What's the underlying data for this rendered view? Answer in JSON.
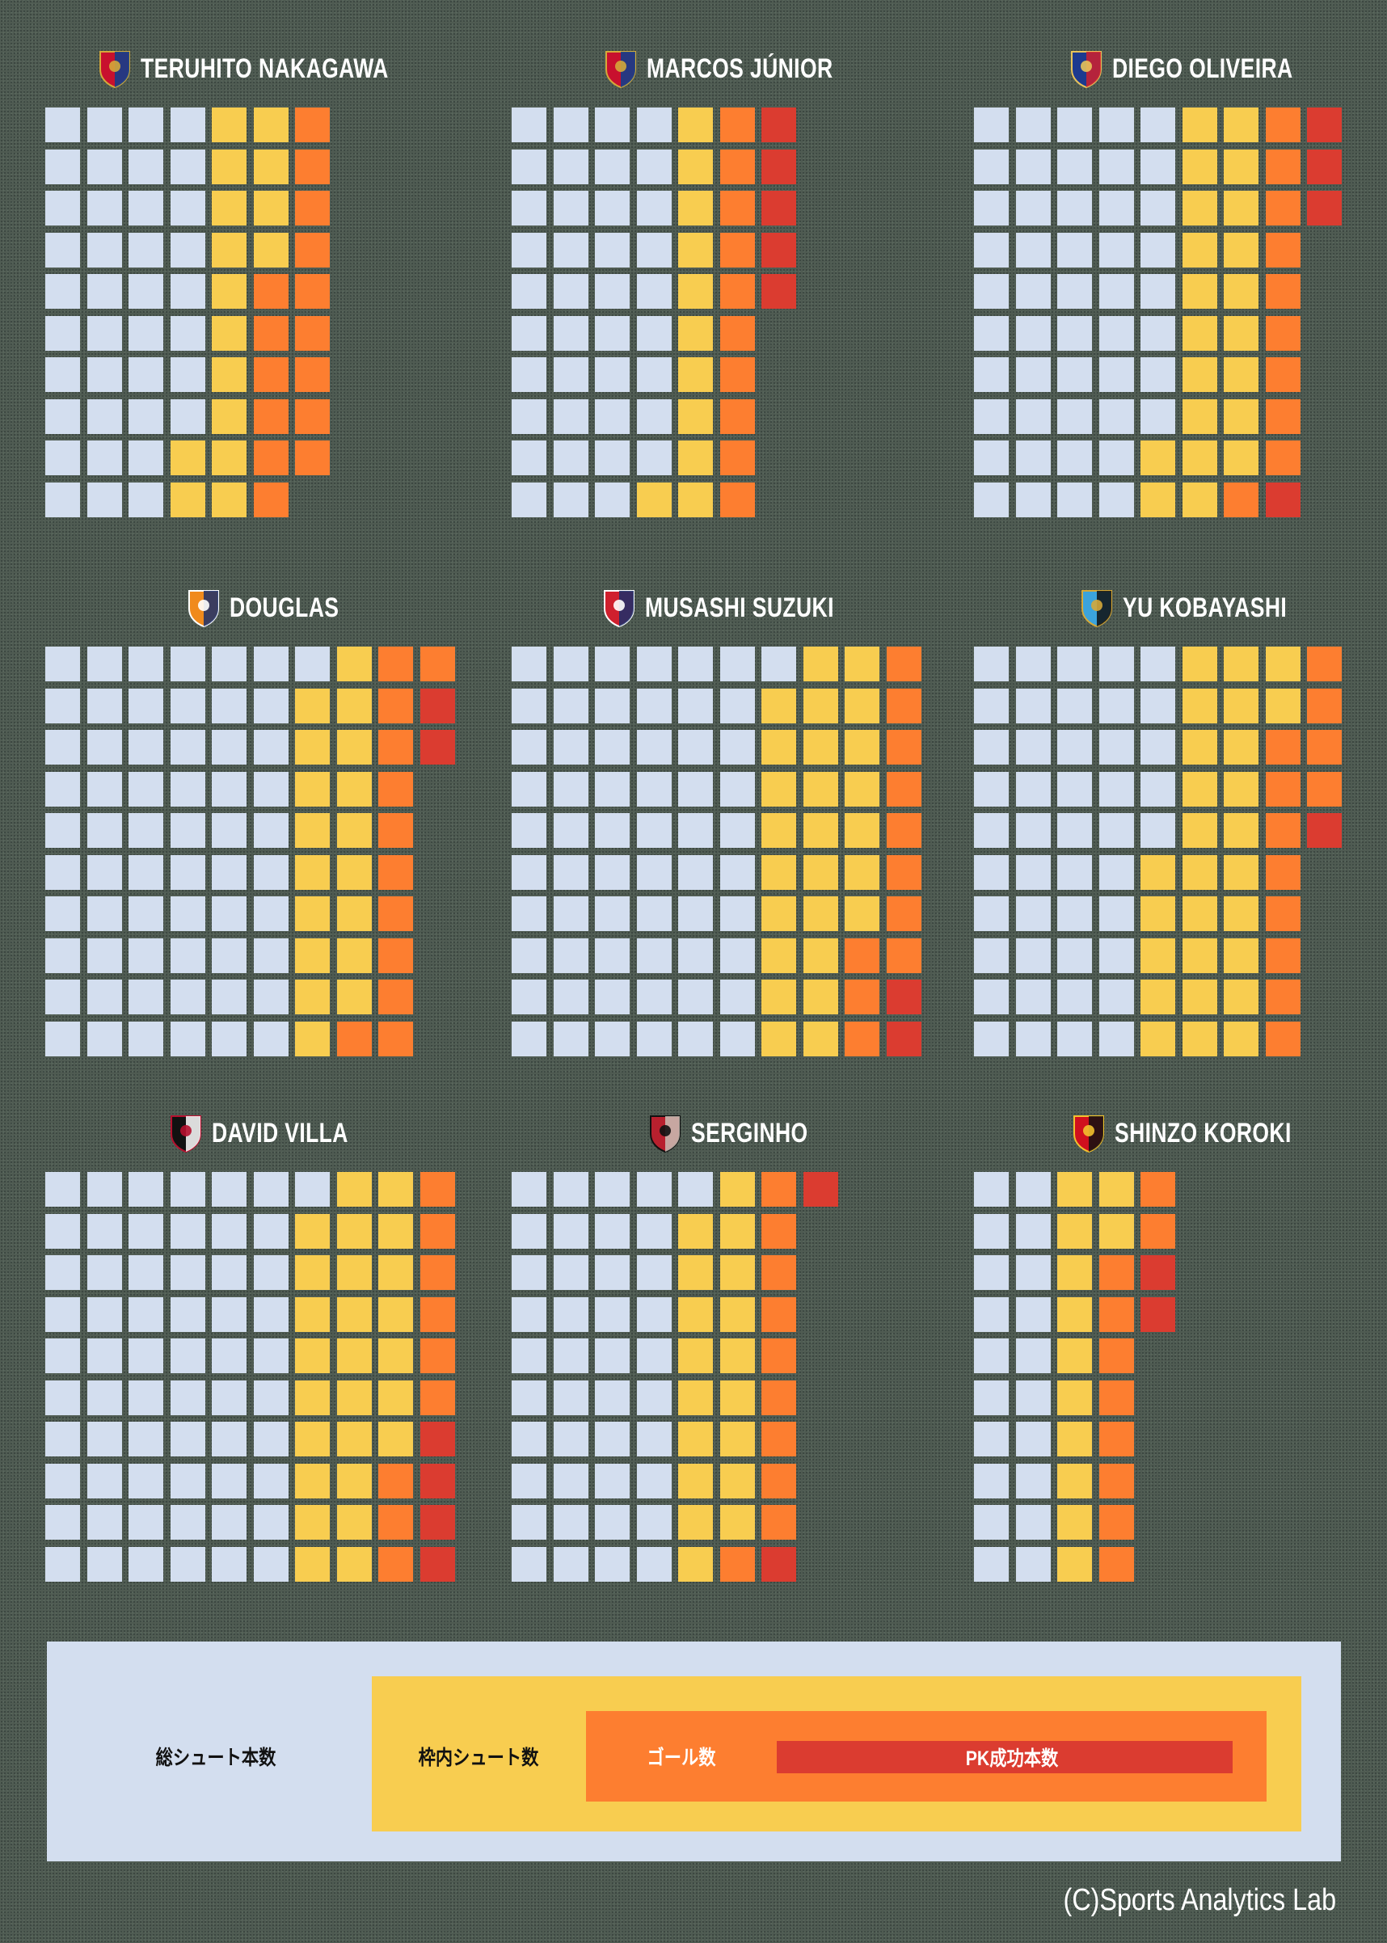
{
  "chart_data": {
    "type": "waffle",
    "rows_per_column": 10,
    "category_order": [
      "other_shots",
      "on_target_non_goal",
      "goals_non_pk",
      "pk_goals"
    ],
    "colors": {
      "other_shots": "#d3deef",
      "on_target_non_goal": "#f8cd50",
      "goals_non_pk": "#fd7e30",
      "pk_goals": "#db3c30"
    },
    "players": [
      {
        "name": "TERUHITO NAKAGAWA",
        "logo": "yokohama-f-marinos-crest-icon",
        "logo_colors": [
          "#c8102e",
          "#0a3f8f",
          "#d4a93a"
        ],
        "counts": [
          38,
          16,
          15,
          0
        ]
      },
      {
        "name": "MARCOS JÚNIOR",
        "logo": "yokohama-f-marinos-crest-icon",
        "logo_colors": [
          "#c8102e",
          "#0a3f8f",
          "#d4a93a"
        ],
        "counts": [
          39,
          11,
          10,
          5
        ]
      },
      {
        "name": "DIEGO OLIVEIRA",
        "logo": "fc-tokyo-crest-icon",
        "logo_colors": [
          "#1d3a8f",
          "#d0202e",
          "#e8c35a"
        ],
        "counts": [
          48,
          21,
          10,
          4
        ]
      },
      {
        "name": "DOUGLAS",
        "logo": "shimizu-s-pulse-crest-icon",
        "logo_colors": [
          "#f08a1c",
          "#1b2f6b",
          "#ffffff"
        ],
        "counts": [
          61,
          18,
          12,
          2
        ]
      },
      {
        "name": "MUSASHI SUZUKI",
        "logo": "consadole-sapporo-crest-icon",
        "logo_colors": [
          "#d0202e",
          "#1b2f6b",
          "#ffffff"
        ],
        "counts": [
          61,
          26,
          11,
          2
        ]
      },
      {
        "name": "YU KOBAYASHI",
        "logo": "kawasaki-frontale-crest-icon",
        "logo_colors": [
          "#3ba3dc",
          "#111111",
          "#d4a93a"
        ],
        "counts": [
          45,
          27,
          12,
          1
        ]
      },
      {
        "name": "DAVID VILLA",
        "logo": "vissel-kobe-crest-icon",
        "logo_colors": [
          "#111111",
          "#ffffff",
          "#b5102e"
        ],
        "counts": [
          61,
          26,
          9,
          4
        ]
      },
      {
        "name": "SERGINHO",
        "logo": "kashima-antlers-crest-icon",
        "logo_colors": [
          "#b8202e",
          "#c9bfb5",
          "#111111"
        ],
        "counts": [
          41,
          18,
          10,
          2
        ]
      },
      {
        "name": "SHINZO KOROKI",
        "logo": "urawa-reds-crest-icon",
        "logo_colors": [
          "#d0101e",
          "#111111",
          "#f2c12e"
        ],
        "counts": [
          20,
          12,
          10,
          2
        ]
      }
    ]
  },
  "legend": {
    "total_shots": "総シュート本数",
    "on_target": "枠内シュート数",
    "goals": "ゴール数",
    "pk_goals": "PK成功本数"
  },
  "copyright": "(C)Sports Analytics Lab"
}
